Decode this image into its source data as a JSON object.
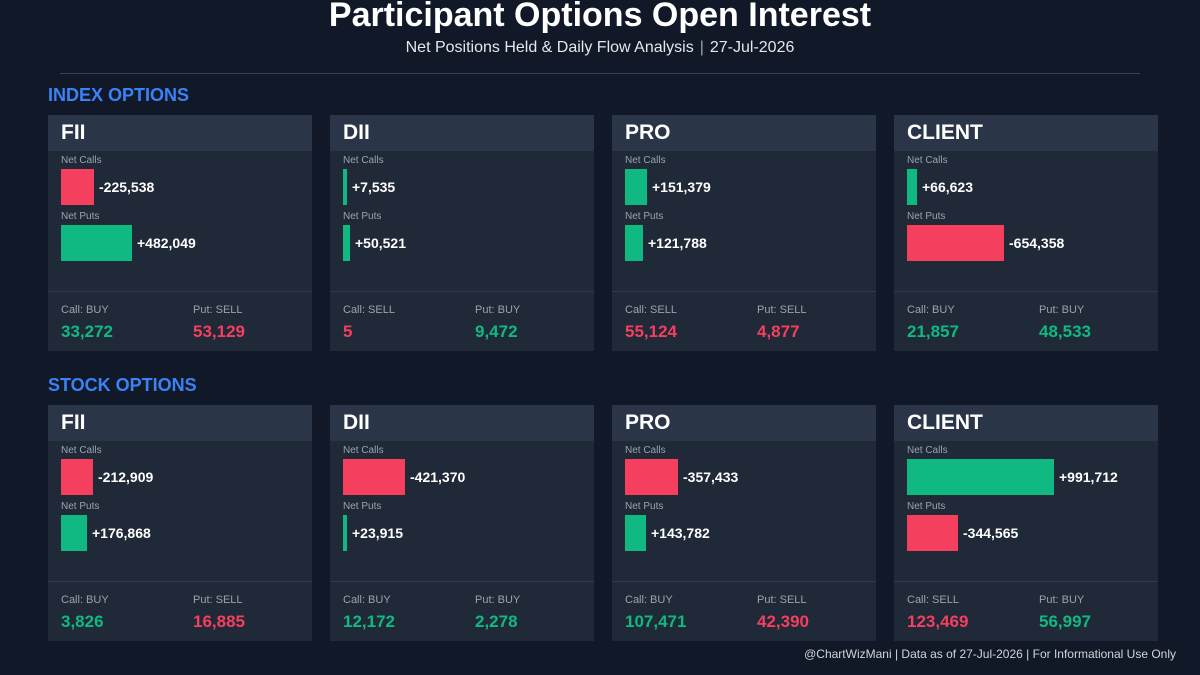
{
  "header": {
    "title": "Participant Options Open Interest",
    "subtitle_text": "Net Positions Held & Daily Flow Analysis",
    "subtitle_separator": "|",
    "date": "27-Jul-2026"
  },
  "colors": {
    "positive": "#10b981",
    "negative": "#f43f5e",
    "accent": "#3b82f6",
    "background": "#111827",
    "card": "#1f2937"
  },
  "sections": [
    {
      "title": "INDEX OPTIONS",
      "cards": [
        {
          "name": "FII",
          "calls_label": "Net Calls",
          "calls": -225538,
          "calls_text": "-225,538",
          "puts_label": "Net Puts",
          "puts": 482049,
          "puts_text": "+482,049",
          "stat1_label": "Call: BUY",
          "stat1_value": "33,272",
          "stat1_positive": true,
          "stat2_label": "Put: SELL",
          "stat2_value": "53,129",
          "stat2_positive": false
        },
        {
          "name": "DII",
          "calls_label": "Net Calls",
          "calls": 7535,
          "calls_text": "+7,535",
          "puts_label": "Net Puts",
          "puts": 50521,
          "puts_text": "+50,521",
          "stat1_label": "Call: SELL",
          "stat1_value": "5",
          "stat1_positive": false,
          "stat2_label": "Put: BUY",
          "stat2_value": "9,472",
          "stat2_positive": true
        },
        {
          "name": "PRO",
          "calls_label": "Net Calls",
          "calls": 151379,
          "calls_text": "+151,379",
          "puts_label": "Net Puts",
          "puts": 121788,
          "puts_text": "+121,788",
          "stat1_label": "Call: SELL",
          "stat1_value": "55,124",
          "stat1_positive": false,
          "stat2_label": "Put: SELL",
          "stat2_value": "4,877",
          "stat2_positive": false
        },
        {
          "name": "CLIENT",
          "calls_label": "Net Calls",
          "calls": 66623,
          "calls_text": "+66,623",
          "puts_label": "Net Puts",
          "puts": -654358,
          "puts_text": "-654,358",
          "stat1_label": "Call: BUY",
          "stat1_value": "21,857",
          "stat1_positive": true,
          "stat2_label": "Put: BUY",
          "stat2_value": "48,533",
          "stat2_positive": true
        }
      ]
    },
    {
      "title": "STOCK OPTIONS",
      "cards": [
        {
          "name": "FII",
          "calls_label": "Net Calls",
          "calls": -212909,
          "calls_text": "-212,909",
          "puts_label": "Net Puts",
          "puts": 176868,
          "puts_text": "+176,868",
          "stat1_label": "Call: BUY",
          "stat1_value": "3,826",
          "stat1_positive": true,
          "stat2_label": "Put: SELL",
          "stat2_value": "16,885",
          "stat2_positive": false
        },
        {
          "name": "DII",
          "calls_label": "Net Calls",
          "calls": -421370,
          "calls_text": "-421,370",
          "puts_label": "Net Puts",
          "puts": 23915,
          "puts_text": "+23,915",
          "stat1_label": "Call: BUY",
          "stat1_value": "12,172",
          "stat1_positive": true,
          "stat2_label": "Put: BUY",
          "stat2_value": "2,278",
          "stat2_positive": true
        },
        {
          "name": "PRO",
          "calls_label": "Net Calls",
          "calls": -357433,
          "calls_text": "-357,433",
          "puts_label": "Net Puts",
          "puts": 143782,
          "puts_text": "+143,782",
          "stat1_label": "Call: BUY",
          "stat1_value": "107,471",
          "stat1_positive": true,
          "stat2_label": "Put: SELL",
          "stat2_value": "42,390",
          "stat2_positive": false
        },
        {
          "name": "CLIENT",
          "calls_label": "Net Calls",
          "calls": 991712,
          "calls_text": "+991,712",
          "puts_label": "Net Puts",
          "puts": -344565,
          "puts_text": "-344,565",
          "stat1_label": "Call: SELL",
          "stat1_value": "123,469",
          "stat1_positive": false,
          "stat2_label": "Put: BUY",
          "stat2_value": "56,997",
          "stat2_positive": true
        }
      ]
    }
  ],
  "footer": "@ChartWizMani | Data as of 27-Jul-2026 | For Informational Use Only",
  "chart_data": {
    "type": "bar",
    "title": "Participant Options Open Interest",
    "subtitle": "Net Positions Held & Daily Flow Analysis | 27-Jul-2026",
    "panels": [
      {
        "section": "INDEX OPTIONS",
        "participant": "FII",
        "categories": [
          "Net Calls",
          "Net Puts"
        ],
        "values": [
          -225538,
          482049
        ]
      },
      {
        "section": "INDEX OPTIONS",
        "participant": "DII",
        "categories": [
          "Net Calls",
          "Net Puts"
        ],
        "values": [
          7535,
          50521
        ]
      },
      {
        "section": "INDEX OPTIONS",
        "participant": "PRO",
        "categories": [
          "Net Calls",
          "Net Puts"
        ],
        "values": [
          151379,
          121788
        ]
      },
      {
        "section": "INDEX OPTIONS",
        "participant": "CLIENT",
        "categories": [
          "Net Calls",
          "Net Puts"
        ],
        "values": [
          66623,
          -654358
        ]
      },
      {
        "section": "STOCK OPTIONS",
        "participant": "FII",
        "categories": [
          "Net Calls",
          "Net Puts"
        ],
        "values": [
          -212909,
          176868
        ]
      },
      {
        "section": "STOCK OPTIONS",
        "participant": "DII",
        "categories": [
          "Net Calls",
          "Net Puts"
        ],
        "values": [
          -421370,
          23915
        ]
      },
      {
        "section": "STOCK OPTIONS",
        "participant": "PRO",
        "categories": [
          "Net Calls",
          "Net Puts"
        ],
        "values": [
          -357433,
          143782
        ]
      },
      {
        "section": "STOCK OPTIONS",
        "participant": "CLIENT",
        "categories": [
          "Net Calls",
          "Net Puts"
        ],
        "values": [
          991712,
          -344565
        ]
      }
    ],
    "grid": false
  }
}
